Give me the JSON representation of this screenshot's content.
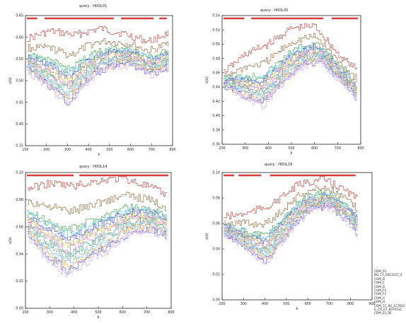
{
  "chart_data": [
    {
      "type": "line",
      "title": "query : H0OL01",
      "xlabel": "k",
      "ylabel": "s(k)",
      "xticks": [
        "100",
        "200",
        "300",
        "400",
        "500",
        "600",
        "700",
        "800"
      ],
      "yticks": [
        "0.35",
        "0.40",
        "0.45",
        "0.50",
        "0.55",
        "0.60",
        "0.65"
      ],
      "xlim": [
        100,
        830
      ],
      "ylim": [
        0.35,
        0.66
      ],
      "coverage_bar_color": "#d63c3c"
    },
    {
      "type": "line",
      "title": "query : H0OL05",
      "xlabel": "k",
      "ylabel": "s(k)",
      "xticks": [
        "200",
        "300",
        "400",
        "500",
        "600",
        "700",
        "800"
      ],
      "yticks": [
        "0.36",
        "0.38",
        "0.40",
        "0.42",
        "0.44",
        "0.46",
        "0.48",
        "0.50",
        "0.52",
        "0.54"
      ],
      "xlim": [
        200,
        810
      ],
      "ylim": [
        0.36,
        0.54
      ],
      "coverage_bar_color": "#d63c3c"
    },
    {
      "type": "line",
      "title": "query : H0OL14",
      "xlabel": "k",
      "ylabel": "s(k)",
      "xticks": [
        "200",
        "300",
        "400",
        "500",
        "600",
        "700",
        "800"
      ],
      "yticks": [
        "0.00",
        "0.02",
        "0.04",
        "0.06",
        "0.08",
        "0.10"
      ],
      "xlim": [
        200,
        840
      ],
      "ylim": [
        0.0,
        0.11
      ],
      "coverage_bar_color": "#d63c3c"
    },
    {
      "type": "line",
      "title": "query : H0OL18",
      "xlabel": "k",
      "ylabel": "s(k)",
      "xticks": [
        "200",
        "300",
        "400",
        "500",
        "600",
        "700",
        "800",
        "900"
      ],
      "yticks": [
        "0.00",
        "0.02",
        "0.04",
        "0.06",
        "0.08",
        "0.10"
      ],
      "xlim": [
        200,
        900
      ],
      "ylim": [
        0.0,
        0.11
      ],
      "coverage_bar_color": "#d63c3c",
      "legend_position": "right",
      "legend": [
        "COM_01",
        "NO_CY_04C1017_4",
        "COM_D",
        "COM_C",
        "COM_D",
        "COM_F1",
        "COM_F2",
        "COM_G",
        "COM_H",
        "COM_1C_04_1C7022",
        "E_CO_07_E07011C",
        "COM_01_0E"
      ]
    }
  ],
  "series_colors": [
    "#c0302c",
    "#8b5a2b",
    "#3c9c3c",
    "#2db8d8",
    "#3a48c8",
    "#7a7acc",
    "#d8c820",
    "#e070d0",
    "#20a070",
    "#a0a0a0",
    "#60c0ff",
    "#e89020",
    "#5050ff",
    "#c8a0ff"
  ]
}
